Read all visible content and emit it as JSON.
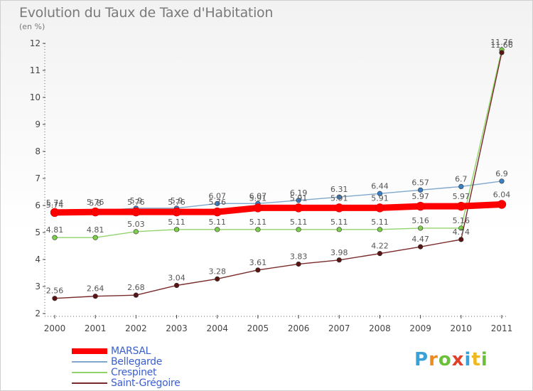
{
  "title": "Evolution du Taux de Taxe d'Habitation",
  "subtitle": "(en %)",
  "logo": {
    "letters": [
      "P",
      "r",
      "o",
      "x",
      "i",
      "t",
      "i"
    ],
    "colors": [
      "#3aa0d8",
      "#f08a1c",
      "#6cbf3a",
      "#e0402a",
      "#3aa0d8",
      "#f0b81c",
      "#6cbf3a"
    ]
  },
  "chart_data": {
    "type": "line",
    "title": "Evolution du Taux de Taxe d'Habitation",
    "ylabel": "(en %)",
    "xlabel": "",
    "x": [
      "2000",
      "2001",
      "2002",
      "2003",
      "2004",
      "2005",
      "2006",
      "2007",
      "2008",
      "2009",
      "2010",
      "2011"
    ],
    "ylim": [
      2,
      12
    ],
    "yticks": [
      "2",
      "3",
      "4",
      "5",
      "6",
      "7",
      "8",
      "9",
      "10",
      "11",
      "12"
    ],
    "grid": false,
    "legend": "bottom-left",
    "series": [
      {
        "name": "Bellegarde",
        "color": "#7fa8cc",
        "marker": "#3b7fc4",
        "values": [
          5.74,
          5.8,
          5.9,
          5.9,
          6.07,
          6.07,
          6.19,
          6.31,
          6.44,
          6.57,
          6.7,
          6.9
        ],
        "labels": [
          "5.74",
          "5.8",
          "5.9",
          "5.9",
          "6.07",
          "6.07",
          "6.19",
          "6.31",
          "6.44",
          "6.57",
          "6.7",
          "6.9"
        ]
      },
      {
        "name": "Crespinet",
        "color": "#93d46a",
        "marker": "#7ccf4a",
        "values": [
          4.81,
          4.81,
          5.03,
          5.11,
          5.11,
          5.11,
          5.11,
          5.11,
          5.11,
          5.16,
          5.16,
          11.76
        ],
        "labels": [
          "4.81",
          "4.81",
          "5.03",
          "5.11",
          "5.11",
          "5.11",
          "5.11",
          "5.11",
          "5.11",
          "5.16",
          "5.16",
          "11.76"
        ]
      },
      {
        "name": "Saint-Grégoire",
        "color": "#7a2a2a",
        "marker": "#5a1414",
        "values": [
          2.56,
          2.64,
          2.68,
          3.04,
          3.28,
          3.61,
          3.83,
          3.98,
          4.22,
          4.47,
          4.74,
          11.66
        ],
        "labels": [
          "2.56",
          "2.64",
          "2.68",
          "3.04",
          "3.28",
          "3.61",
          "3.83",
          "3.98",
          "4.22",
          "4.47",
          "4.74",
          "11.66"
        ]
      },
      {
        "name": "MARSAL",
        "color": "#ff0000",
        "marker": "#ff0000",
        "values": [
          5.74,
          5.76,
          5.76,
          5.76,
          5.76,
          5.91,
          5.91,
          5.91,
          5.91,
          5.97,
          5.97,
          6.04
        ],
        "labels": [
          "5.74",
          "5.76",
          "5.76",
          "5.76",
          "5.76",
          "5.91",
          "5.91",
          "5.91",
          "5.91",
          "5.97",
          "5.97",
          "6.04"
        ]
      }
    ],
    "legend_order": [
      "MARSAL",
      "Bellegarde",
      "Crespinet",
      "Saint-Grégoire"
    ]
  }
}
